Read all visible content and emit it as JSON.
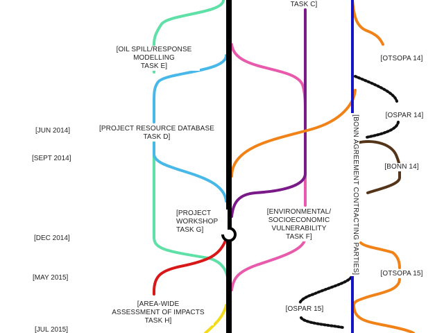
{
  "dates": {
    "jun_2014": "[JUN 2014]",
    "sept_2014": "[SEPT 2014]",
    "dec_2014": "[DEC 2014]",
    "may_2015": "[MAY 2015]",
    "jul_2015": "[JUL 2015]"
  },
  "tasks": {
    "task_c": "TASK C]",
    "task_e": "[OIL SPILL/RESPONSE\nMODELLING\nTASK E]",
    "task_d": "[PROJECT RESOURCE DATABASE\nTASK D]",
    "task_g": "[PROJECT\nWORKSHOP\nTASK G]",
    "task_f": "[ENVIRONMENTAL/\nSOCIOECONOMIC\nVULNERABILITY\nTASK F]",
    "task_h": "[AREA-WIDE\nASSESSMENT OF IMPACTS\nTASK H]"
  },
  "meetings": {
    "otsopa_14": "[OTSOPA 14]",
    "ospar_14": "[OSPAR 14]",
    "bonn_14": "[BONN 14]",
    "otsopa_15": "[OTSOPA 15]",
    "ospar_15": "[OSPAR 15]"
  },
  "bonn_parties": "[BONN AGREEMENT CONTRACTING PARTIES]",
  "colors": {
    "trunk": "#000000",
    "oil_spill": "#5ee0a6",
    "database": "#47b8e8",
    "pink": "#e85aac",
    "purple": "#7a1a88",
    "orange": "#f08218",
    "blue": "#1414c8",
    "brown": "#54351a",
    "red": "#d81818",
    "yellow": "#f2dc1a",
    "dotted": "#111111"
  }
}
